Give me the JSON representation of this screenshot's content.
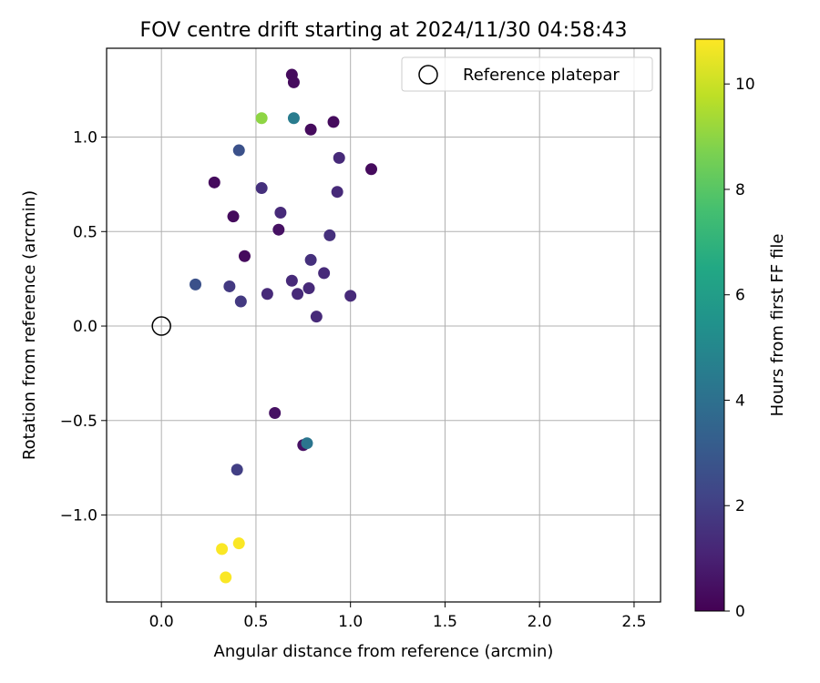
{
  "chart_data": {
    "type": "scatter",
    "title": "FOV centre drift starting at 2024/11/30 04:58:43",
    "xlabel": "Angular distance from reference (arcmin)",
    "ylabel": "Rotation from reference (arcmin)",
    "xlim": [
      -0.29,
      2.64
    ],
    "ylim": [
      -1.46,
      1.47
    ],
    "xticks": [
      0.0,
      0.5,
      1.0,
      1.5,
      2.0,
      2.5
    ],
    "xtick_labels": [
      "0.0",
      "0.5",
      "1.0",
      "1.5",
      "2.0",
      "2.5"
    ],
    "yticks": [
      -1.0,
      -0.5,
      0.0,
      0.5,
      1.0
    ],
    "ytick_labels": [
      "−1.0",
      "−0.5",
      "0.0",
      "0.5",
      "1.0"
    ],
    "grid": true,
    "legend": {
      "placement": "upper right",
      "entries": [
        "Reference platepar"
      ]
    },
    "reference_point": {
      "x": 0.0,
      "y": 0.0,
      "marker": "hollow circle",
      "color": "#000000"
    },
    "colorbar": {
      "label": "Hours from first FF file",
      "colormap": "viridis",
      "min": 0,
      "max": 10.85,
      "ticks": [
        0,
        2,
        4,
        6,
        8,
        10
      ],
      "tick_labels": [
        "0",
        "2",
        "4",
        "6",
        "8",
        "10"
      ]
    },
    "points": [
      {
        "x": 0.69,
        "y": 1.33,
        "hours": 0.3
      },
      {
        "x": 0.7,
        "y": 1.29,
        "hours": 0.3
      },
      {
        "x": 0.53,
        "y": 1.1,
        "hours": 9.0
      },
      {
        "x": 0.7,
        "y": 1.1,
        "hours": 4.5
      },
      {
        "x": 0.91,
        "y": 1.08,
        "hours": 0.3
      },
      {
        "x": 0.79,
        "y": 1.04,
        "hours": 0.3
      },
      {
        "x": 0.41,
        "y": 0.93,
        "hours": 2.7
      },
      {
        "x": 0.94,
        "y": 0.89,
        "hours": 1.3
      },
      {
        "x": 1.11,
        "y": 0.83,
        "hours": 0.3
      },
      {
        "x": 0.28,
        "y": 0.76,
        "hours": 0.3
      },
      {
        "x": 0.53,
        "y": 0.73,
        "hours": 1.5
      },
      {
        "x": 0.93,
        "y": 0.71,
        "hours": 1.3
      },
      {
        "x": 0.63,
        "y": 0.6,
        "hours": 1.3
      },
      {
        "x": 0.38,
        "y": 0.58,
        "hours": 0.3
      },
      {
        "x": 0.62,
        "y": 0.51,
        "hours": 0.5
      },
      {
        "x": 0.89,
        "y": 0.48,
        "hours": 1.5
      },
      {
        "x": 0.44,
        "y": 0.37,
        "hours": 0.3
      },
      {
        "x": 0.79,
        "y": 0.35,
        "hours": 1.5
      },
      {
        "x": 0.86,
        "y": 0.28,
        "hours": 1.3
      },
      {
        "x": 0.69,
        "y": 0.24,
        "hours": 1.3
      },
      {
        "x": 0.18,
        "y": 0.22,
        "hours": 2.7
      },
      {
        "x": 0.36,
        "y": 0.21,
        "hours": 1.8
      },
      {
        "x": 0.78,
        "y": 0.2,
        "hours": 1.3
      },
      {
        "x": 0.56,
        "y": 0.17,
        "hours": 1.3
      },
      {
        "x": 0.72,
        "y": 0.17,
        "hours": 1.3
      },
      {
        "x": 1.0,
        "y": 0.16,
        "hours": 1.3
      },
      {
        "x": 0.42,
        "y": 0.13,
        "hours": 1.8
      },
      {
        "x": 0.82,
        "y": 0.05,
        "hours": 1.3
      },
      {
        "x": 0.6,
        "y": -0.46,
        "hours": 0.5
      },
      {
        "x": 0.75,
        "y": -0.63,
        "hours": 0.5
      },
      {
        "x": 0.77,
        "y": -0.62,
        "hours": 4.2
      },
      {
        "x": 0.4,
        "y": -0.76,
        "hours": 2.0
      },
      {
        "x": 0.41,
        "y": -1.15,
        "hours": 10.8
      },
      {
        "x": 0.32,
        "y": -1.18,
        "hours": 10.8
      },
      {
        "x": 0.34,
        "y": -1.33,
        "hours": 10.8
      }
    ]
  }
}
